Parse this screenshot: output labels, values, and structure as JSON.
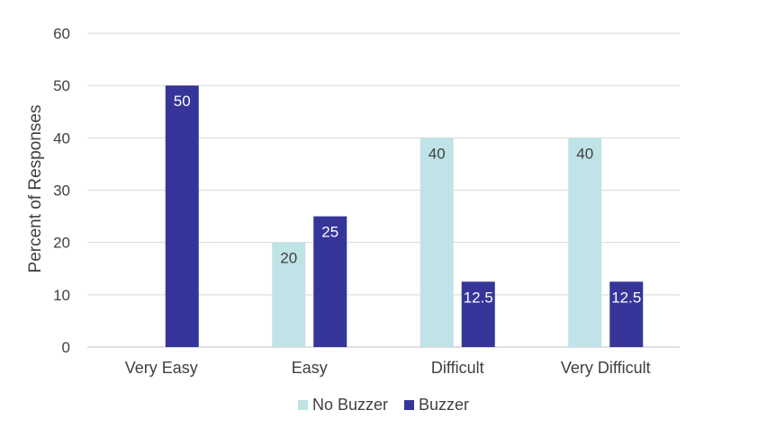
{
  "chart_data": {
    "type": "bar",
    "categories": [
      "Very Easy",
      "Easy",
      "Difficult",
      "Very Difficult"
    ],
    "series": [
      {
        "name": "No Buzzer",
        "color": "#bfe3e6",
        "values": [
          null,
          20,
          40,
          40
        ],
        "labels": [
          "",
          "20",
          "40",
          "40"
        ]
      },
      {
        "name": "Buzzer",
        "color": "#35359a",
        "values": [
          50,
          25,
          12.5,
          12.5
        ],
        "labels": [
          "50",
          "25",
          "12.5",
          "12.5"
        ]
      }
    ],
    "ylabel": "Percent of Responses",
    "xlabel": "",
    "ylim": [
      0,
      60
    ],
    "yticks": [
      "0",
      "10",
      "20",
      "30",
      "40",
      "50",
      "60"
    ],
    "grid": true,
    "legend_position": "bottom"
  }
}
